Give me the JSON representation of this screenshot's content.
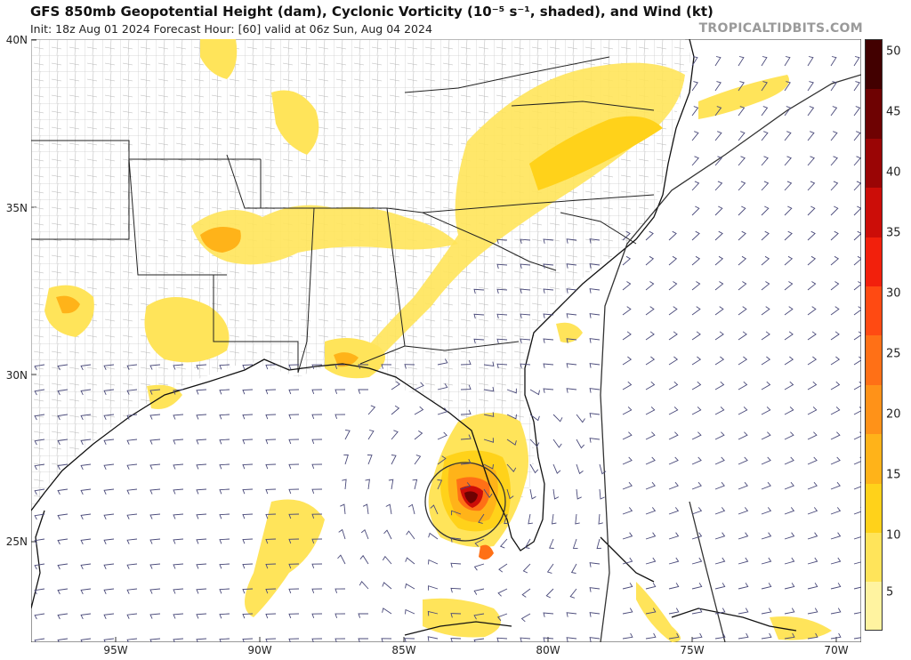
{
  "header": {
    "title": "GFS 850mb Geopotential Height (dam), Cyclonic Vorticity (10⁻⁵ s⁻¹, shaded), and Wind (kt)",
    "subtitle": "Init: 18z Aug 01 2024   Forecast Hour: [60]   valid at 06z Sun, Aug 04 2024",
    "credit": "TROPICALTIDBITS.COM"
  },
  "map": {
    "lat_labels": [
      "40N",
      "35N",
      "30N",
      "25N"
    ],
    "lon_labels": [
      "95W",
      "90W",
      "85W",
      "80W",
      "75W",
      "70W"
    ],
    "colors": {
      "land_border": "#9a9a9a",
      "state_border": "#222222",
      "coast": "#111111",
      "contour": "#333333",
      "barb": "#4a4a7a"
    }
  },
  "colorbar": {
    "ticks": [
      "50",
      "45",
      "40",
      "35",
      "30",
      "25",
      "20",
      "15",
      "10",
      "5"
    ],
    "colors": [
      "#fff3a0",
      "#ffe45a",
      "#ffd21a",
      "#ffb319",
      "#ff9218",
      "#ff7016",
      "#ff4a12",
      "#f2200c",
      "#cc0d08",
      "#9a0505",
      "#6e0202",
      "#420000"
    ]
  }
}
